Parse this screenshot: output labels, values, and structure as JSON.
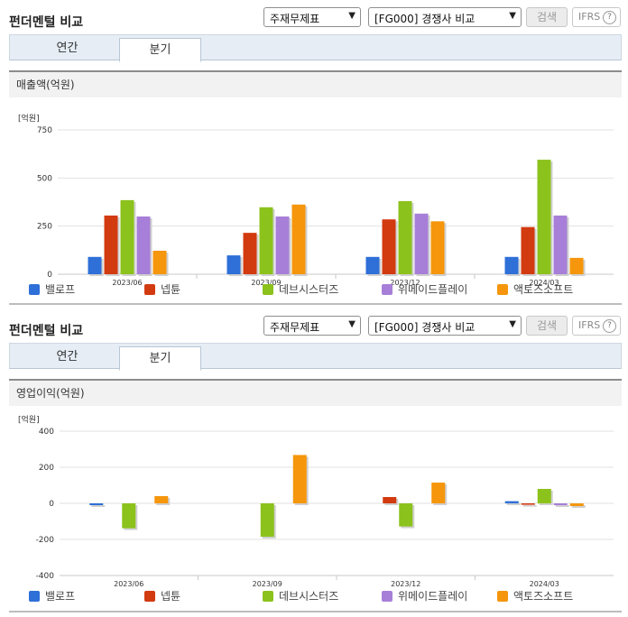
{
  "panels": [
    {
      "title": "펀더멘털 비교",
      "statement_select": "주재무제표",
      "compare_select": "[FG000] 경쟁사 비교",
      "search_label": "검색",
      "ifrs_label": "IFRS",
      "help_label": "?",
      "tabs": [
        {
          "label": "연간"
        },
        {
          "label": "분기"
        }
      ],
      "active_tab": 1,
      "section_title": "매출액(억원)"
    },
    {
      "title": "펀더멘털 비교",
      "statement_select": "주재무제표",
      "compare_select": "[FG000] 경쟁사 비교",
      "search_label": "검색",
      "ifrs_label": "IFRS",
      "help_label": "?",
      "tabs": [
        {
          "label": "연간"
        },
        {
          "label": "분기"
        }
      ],
      "active_tab": 1,
      "section_title": "영업이익(억원)"
    }
  ],
  "chart_data": [
    {
      "type": "bar",
      "unit_label": "[억원]",
      "categories": [
        "2023/06",
        "2023/09",
        "2023/12",
        "2024/03"
      ],
      "ylim": [
        0,
        750
      ],
      "yticks": [
        0,
        250,
        500,
        750
      ],
      "grid": true,
      "legend_position": "bottom",
      "series": [
        {
          "name": "밸로프",
          "color": "#2e6fd8",
          "values": [
            90,
            98,
            90,
            90
          ]
        },
        {
          "name": "넵튠",
          "color": "#d23a0f",
          "values": [
            305,
            215,
            285,
            245
          ]
        },
        {
          "name": "데브시스터즈",
          "color": "#8cc21c",
          "values": [
            385,
            348,
            380,
            595
          ]
        },
        {
          "name": "위메이드플레이",
          "color": "#a77fd8",
          "values": [
            300,
            300,
            315,
            305
          ]
        },
        {
          "name": "액토즈소프트",
          "color": "#f5960c",
          "values": [
            122,
            362,
            275,
            85
          ]
        }
      ]
    },
    {
      "type": "bar",
      "unit_label": "[억원]",
      "categories": [
        "2023/06",
        "2023/09",
        "2023/12",
        "2024/03"
      ],
      "ylim": [
        -400,
        400
      ],
      "yticks": [
        -400,
        -200,
        0,
        200,
        400
      ],
      "grid": true,
      "legend_position": "bottom",
      "series": [
        {
          "name": "밸로프",
          "color": "#2e6fd8",
          "values": [
            -10,
            0,
            0,
            12
          ]
        },
        {
          "name": "넵튠",
          "color": "#d23a0f",
          "values": [
            0,
            0,
            35,
            -8
          ]
        },
        {
          "name": "데브시스터즈",
          "color": "#8cc21c",
          "values": [
            -138,
            -185,
            -128,
            80
          ]
        },
        {
          "name": "위메이드플레이",
          "color": "#a77fd8",
          "values": [
            0,
            0,
            0,
            -10
          ]
        },
        {
          "name": "액토즈소프트",
          "color": "#f5960c",
          "values": [
            40,
            268,
            115,
            -15
          ]
        }
      ]
    }
  ]
}
